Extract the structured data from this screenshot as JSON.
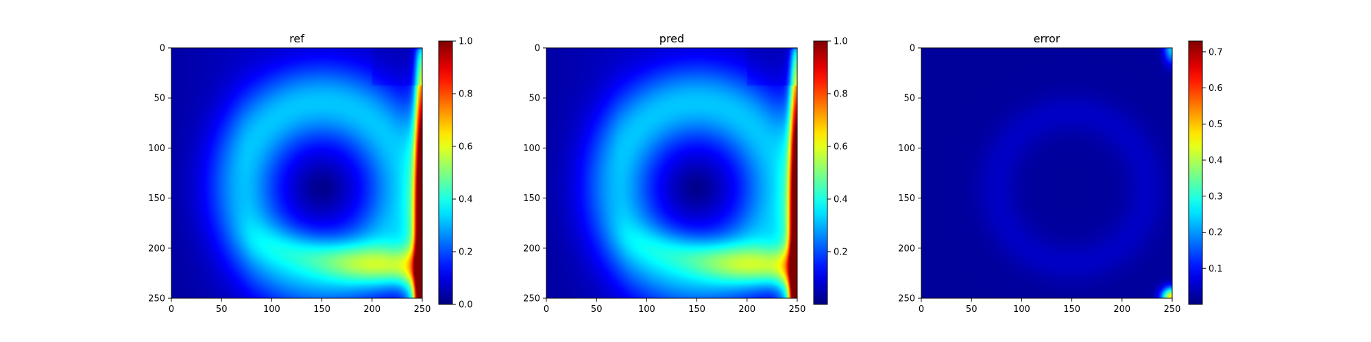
{
  "colors": {
    "background": "#ffffff",
    "axis": "#000000",
    "colormap": "jet"
  },
  "chart_data": [
    {
      "type": "heatmap",
      "title": "ref",
      "xlabel": "",
      "ylabel": "",
      "xlim": [
        0,
        250
      ],
      "ylim": [
        250,
        0
      ],
      "x_ticks": [
        0,
        50,
        100,
        150,
        200,
        250
      ],
      "y_ticks": [
        0,
        50,
        100,
        150,
        200,
        250
      ],
      "colorbar": {
        "range": [
          0.0,
          1.0
        ],
        "ticks": [
          "0.0",
          "0.2",
          "0.4",
          "0.6",
          "0.8",
          "1.0"
        ]
      },
      "field": {
        "grid_shape": [
          251,
          251
        ],
        "vortex_center": [
          150,
          140
        ],
        "values": [
          {
            "region": "top-left corner",
            "value": 0.05
          },
          {
            "region": "vortex core",
            "value": 0.08
          },
          {
            "region": "upper arc",
            "value": 0.3
          },
          {
            "region": "bottom-right tail",
            "value": 0.65
          },
          {
            "region": "right wall",
            "value": 1.0
          }
        ]
      }
    },
    {
      "type": "heatmap",
      "title": "pred",
      "xlabel": "",
      "ylabel": "",
      "xlim": [
        0,
        250
      ],
      "ylim": [
        250,
        0
      ],
      "x_ticks": [
        0,
        50,
        100,
        150,
        200,
        250
      ],
      "y_ticks": [
        0,
        50,
        100,
        150,
        200,
        250
      ],
      "colorbar": {
        "range": [
          0.0,
          1.0
        ],
        "ticks": [
          "0.2",
          "0.4",
          "0.6",
          "0.8",
          "1.0"
        ]
      },
      "field": {
        "grid_shape": [
          251,
          251
        ],
        "vortex_center": [
          150,
          140
        ],
        "values": [
          {
            "region": "top-left corner",
            "value": 0.05
          },
          {
            "region": "vortex core",
            "value": 0.08
          },
          {
            "region": "upper arc",
            "value": 0.3
          },
          {
            "region": "bottom-right tail",
            "value": 0.65
          },
          {
            "region": "right wall",
            "value": 1.0
          }
        ]
      }
    },
    {
      "type": "heatmap",
      "title": "error",
      "xlabel": "",
      "ylabel": "",
      "xlim": [
        0,
        250
      ],
      "ylim": [
        250,
        0
      ],
      "x_ticks": [
        0,
        50,
        100,
        150,
        200,
        250
      ],
      "y_ticks": [
        0,
        50,
        100,
        150,
        200,
        250
      ],
      "colorbar": {
        "range": [
          0.0,
          0.73
        ],
        "ticks": [
          "0.1",
          "0.2",
          "0.3",
          "0.4",
          "0.5",
          "0.6",
          "0.7"
        ]
      },
      "field": {
        "grid_shape": [
          251,
          251
        ],
        "values": [
          {
            "region": "background",
            "value": 0.02
          },
          {
            "region": "faint arc",
            "value": 0.05
          },
          {
            "region": "top-right corner",
            "value": 0.25
          },
          {
            "region": "bottom-right corner",
            "value": 0.45
          }
        ]
      }
    }
  ]
}
